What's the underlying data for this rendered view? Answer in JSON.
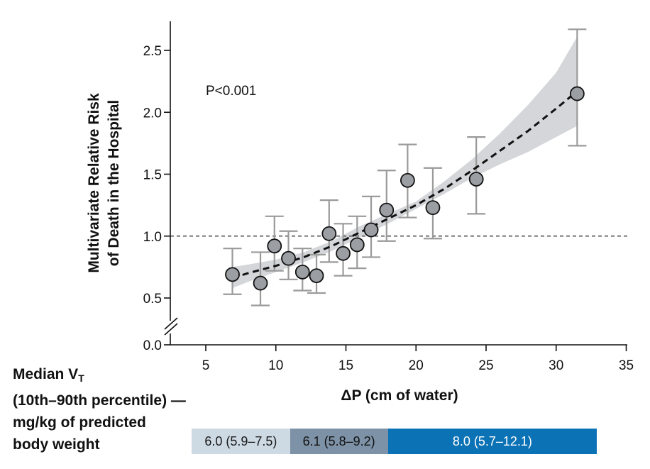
{
  "chart_data": {
    "type": "scatter",
    "title": "",
    "xlabel": "ΔP (cm of water)",
    "ylabel_lines": [
      "Multivariate Relative Risk",
      "of Death in the Hospital"
    ],
    "xlim": [
      4,
      35
    ],
    "ylim": [
      0.0,
      2.5
    ],
    "x_ticks": [
      5,
      10,
      15,
      20,
      25,
      30,
      35
    ],
    "y_ticks": [
      0.0,
      0.5,
      1.0,
      1.5,
      2.0,
      2.5
    ],
    "y_tick_labels": [
      "0.0",
      "0.5",
      "1.0",
      "1.5",
      "2.0",
      "2.5"
    ],
    "y_axis_break": true,
    "reference_line_y": 1.0,
    "annotation": "P<0.001",
    "points": [
      {
        "x": 6.9,
        "y": 0.69,
        "lo": 0.53,
        "hi": 0.9
      },
      {
        "x": 8.9,
        "y": 0.62,
        "lo": 0.44,
        "hi": 0.87
      },
      {
        "x": 9.9,
        "y": 0.92,
        "lo": 0.72,
        "hi": 1.16
      },
      {
        "x": 10.9,
        "y": 0.82,
        "lo": 0.65,
        "hi": 1.04
      },
      {
        "x": 11.9,
        "y": 0.71,
        "lo": 0.56,
        "hi": 0.9
      },
      {
        "x": 12.9,
        "y": 0.68,
        "lo": 0.54,
        "hi": 0.85
      },
      {
        "x": 13.8,
        "y": 1.02,
        "lo": 0.79,
        "hi": 1.29
      },
      {
        "x": 14.8,
        "y": 0.86,
        "lo": 0.68,
        "hi": 1.1
      },
      {
        "x": 15.8,
        "y": 0.93,
        "lo": 0.74,
        "hi": 1.16
      },
      {
        "x": 16.8,
        "y": 1.05,
        "lo": 0.83,
        "hi": 1.32
      },
      {
        "x": 17.9,
        "y": 1.21,
        "lo": 0.96,
        "hi": 1.53
      },
      {
        "x": 19.4,
        "y": 1.45,
        "lo": 1.15,
        "hi": 1.74
      },
      {
        "x": 21.2,
        "y": 1.23,
        "lo": 0.98,
        "hi": 1.55
      },
      {
        "x": 24.3,
        "y": 1.46,
        "lo": 1.18,
        "hi": 1.8
      },
      {
        "x": 31.5,
        "y": 2.15,
        "lo": 1.73,
        "hi": 2.67
      }
    ],
    "fit": {
      "x": [
        6.9,
        8,
        10,
        12,
        14,
        16,
        18,
        20,
        22,
        24,
        26,
        28,
        30,
        31.5
      ],
      "y": [
        0.66,
        0.7,
        0.76,
        0.83,
        0.92,
        1.03,
        1.14,
        1.25,
        1.38,
        1.53,
        1.69,
        1.85,
        2.03,
        2.17
      ],
      "lo": [
        0.58,
        0.63,
        0.71,
        0.79,
        0.88,
        0.99,
        1.1,
        1.22,
        1.34,
        1.47,
        1.58,
        1.68,
        1.8,
        1.89
      ],
      "hi": [
        0.75,
        0.77,
        0.81,
        0.87,
        0.96,
        1.08,
        1.18,
        1.28,
        1.44,
        1.62,
        1.83,
        2.06,
        2.32,
        2.61
      ]
    },
    "colors": {
      "point_fill": "#9b9ea3",
      "error_bar": "#9a9a9a",
      "band": "#d4d6d9",
      "fit_line": "#111111"
    }
  },
  "vt_legend": {
    "label_lines": [
      "Median V",
      "(10th–90th percentile) —",
      "mg/kg of predicted",
      "body weight"
    ],
    "label_subscript": "T",
    "boxes": [
      {
        "text": "6.0 (5.9–7.5)",
        "x_start": 4.0,
        "x_end": 11.0,
        "bg": "#cdd9e3",
        "fg": "#1a1a1a"
      },
      {
        "text": "6.1 (5.8–9.2)",
        "x_start": 11.0,
        "x_end": 18.0,
        "bg": "#7d92a6",
        "fg": "#111111"
      },
      {
        "text": "8.0 (5.7–12.1)",
        "x_start": 18.0,
        "x_end": 32.9,
        "bg": "#0b72b5",
        "fg": "#ffffff"
      }
    ]
  }
}
